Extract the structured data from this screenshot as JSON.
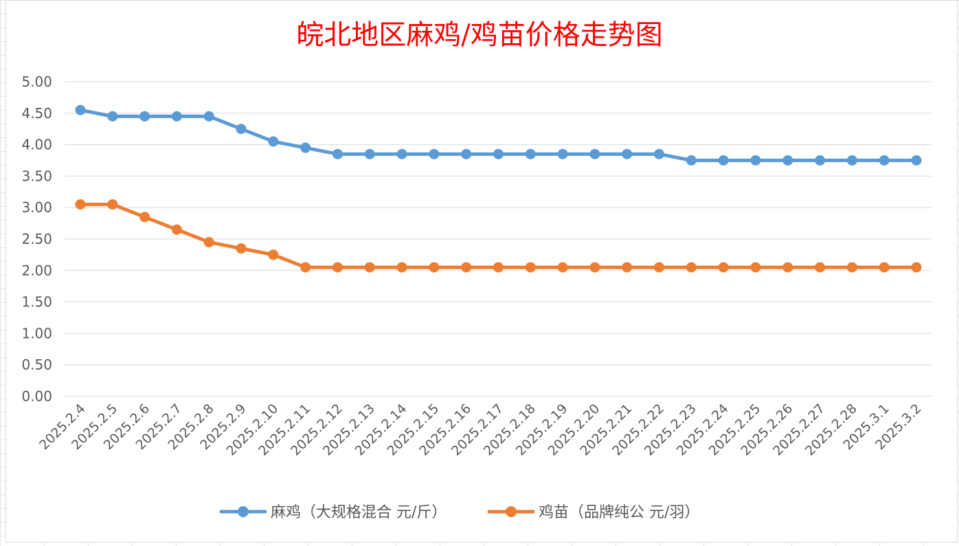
{
  "chart_data": {
    "type": "line",
    "title": "皖北地区麻鸡/鸡苗价格走势图",
    "xlabel": "",
    "ylabel": "",
    "ylim": [
      0,
      5
    ],
    "yticks": [
      "0.00",
      "0.50",
      "1.00",
      "1.50",
      "2.00",
      "2.50",
      "3.00",
      "3.50",
      "4.00",
      "4.50",
      "5.00"
    ],
    "grid": true,
    "legend_position": "bottom",
    "categories": [
      "2025.2.4",
      "2025.2.5",
      "2025.2.6",
      "2025.2.7",
      "2025.2.8",
      "2025.2.9",
      "2025.2.10",
      "2025.2.11",
      "2025.2.12",
      "2025.2.13",
      "2025.2.14",
      "2025.2.15",
      "2025.2.16",
      "2025.2.17",
      "2025.2.18",
      "2025.2.19",
      "2025.2.20",
      "2025.2.21",
      "2025.2.22",
      "2025.2.23",
      "2025.2.24",
      "2025.2.25",
      "2025.2.26",
      "2025.2.27",
      "2025.2.28",
      "2025.3.1",
      "2025.3.2"
    ],
    "series": [
      {
        "name": "麻鸡（大规格混合 元/斤）",
        "color": "#5b9bd5",
        "values": [
          4.55,
          4.45,
          4.45,
          4.45,
          4.45,
          4.25,
          4.05,
          3.95,
          3.85,
          3.85,
          3.85,
          3.85,
          3.85,
          3.85,
          3.85,
          3.85,
          3.85,
          3.85,
          3.85,
          3.75,
          3.75,
          3.75,
          3.75,
          3.75,
          3.75,
          3.75,
          3.75
        ]
      },
      {
        "name": "鸡苗（品牌纯公 元/羽）",
        "color": "#ed7d31",
        "values": [
          3.05,
          3.05,
          2.85,
          2.65,
          2.45,
          2.35,
          2.25,
          2.05,
          2.05,
          2.05,
          2.05,
          2.05,
          2.05,
          2.05,
          2.05,
          2.05,
          2.05,
          2.05,
          2.05,
          2.05,
          2.05,
          2.05,
          2.05,
          2.05,
          2.05,
          2.05,
          2.05
        ]
      }
    ]
  }
}
